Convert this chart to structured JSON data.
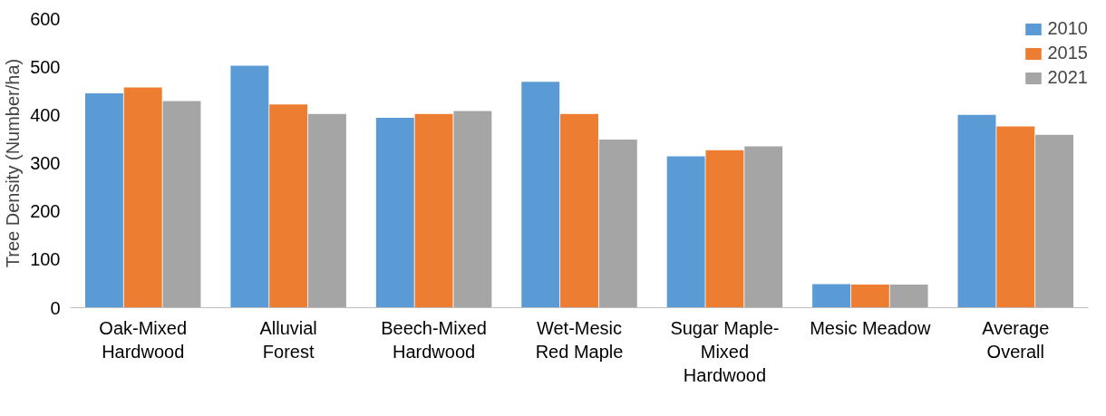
{
  "chart_data": {
    "type": "bar",
    "ylabel": "Tree Density (Number/ha)",
    "categories": [
      "Oak-Mixed Hardwood",
      "Alluvial Forest",
      "Beech-Mixed Hardwood",
      "Wet-Mesic Red Maple",
      "Sugar Maple-Mixed Hardwood",
      "Mesic Meadow",
      "Average Overall"
    ],
    "series": [
      {
        "name": "2010",
        "color": "#5b9bd5",
        "values": [
          445,
          502,
          394,
          469,
          314,
          49,
          400
        ]
      },
      {
        "name": "2015",
        "color": "#ed7d31",
        "values": [
          457,
          422,
          402,
          402,
          327,
          48,
          376
        ]
      },
      {
        "name": "2021",
        "color": "#a5a5a5",
        "values": [
          429,
          402,
          408,
          349,
          335,
          48,
          359
        ]
      }
    ],
    "ylim": [
      0,
      600
    ],
    "yticks": [
      0,
      100,
      200,
      300,
      400,
      500,
      600
    ],
    "grid": false,
    "legend": "top right"
  }
}
